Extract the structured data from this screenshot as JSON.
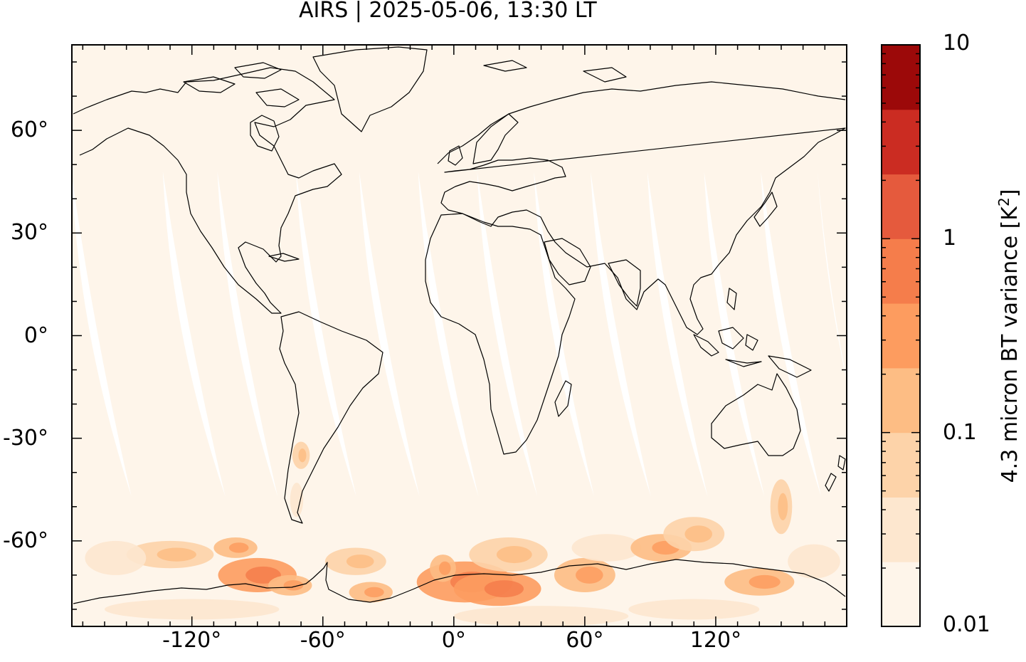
{
  "title": "AIRS | 2025-05-06, 13:30 LT",
  "map": {
    "projection": "equirectangular",
    "lon_range": [
      -175,
      180
    ],
    "lat_range": [
      -85,
      85
    ],
    "background_color": "#fef5ea",
    "land_outline_color": "#000000",
    "x_ticks": [
      {
        "value": -120,
        "label": "-120°"
      },
      {
        "value": -60,
        "label": "-60°"
      },
      {
        "value": 0,
        "label": "0°"
      },
      {
        "value": 60,
        "label": "60°"
      },
      {
        "value": 120,
        "label": "120°"
      }
    ],
    "y_ticks": [
      {
        "value": 60,
        "label": "60°"
      },
      {
        "value": 30,
        "label": "30°"
      },
      {
        "value": 0,
        "label": "0°"
      },
      {
        "value": -30,
        "label": "-30°"
      },
      {
        "value": -60,
        "label": "-60°"
      }
    ],
    "orbit_gaps": [
      {
        "lon_top": -175,
        "lat_top": 48,
        "lon_bottom": -150,
        "lat_bottom": -47
      },
      {
        "lon_top": -133,
        "lat_top": 48,
        "lon_bottom": -107,
        "lat_bottom": -47
      },
      {
        "lon_top": -108,
        "lat_top": 48,
        "lon_bottom": -83,
        "lat_bottom": -47
      },
      {
        "lon_top": -72,
        "lat_top": 48,
        "lon_bottom": -47,
        "lat_bottom": -47
      },
      {
        "lon_top": -43,
        "lat_top": 48,
        "lon_bottom": -18,
        "lat_bottom": -47
      },
      {
        "lon_top": -16,
        "lat_top": 48,
        "lon_bottom": 9,
        "lat_bottom": -47
      },
      {
        "lon_top": 11,
        "lat_top": 48,
        "lon_bottom": 36,
        "lat_bottom": -47
      },
      {
        "lon_top": 37,
        "lat_top": 48,
        "lon_bottom": 62,
        "lat_bottom": -47
      },
      {
        "lon_top": 63,
        "lat_top": 48,
        "lon_bottom": 88,
        "lat_bottom": -47
      },
      {
        "lon_top": 89,
        "lat_top": 48,
        "lon_bottom": 114,
        "lat_bottom": -47
      },
      {
        "lon_top": 115,
        "lat_top": 48,
        "lon_bottom": 140,
        "lat_bottom": -47
      },
      {
        "lon_top": 141,
        "lat_top": 48,
        "lon_bottom": 166,
        "lat_bottom": -47
      },
      {
        "lon_top": 167,
        "lat_top": 48,
        "lon_bottom": 180,
        "lat_bottom": -20
      }
    ],
    "variance_patches": [
      {
        "lon": -90,
        "lat": -70,
        "rx": 18,
        "ry": 5,
        "level": 4
      },
      {
        "lon": -100,
        "lat": -62,
        "rx": 10,
        "ry": 3,
        "level": 3
      },
      {
        "lon": -130,
        "lat": -64,
        "rx": 20,
        "ry": 4,
        "level": 2
      },
      {
        "lon": -155,
        "lat": -65,
        "rx": 14,
        "ry": 5,
        "level": 1
      },
      {
        "lon": -75,
        "lat": -73,
        "rx": 10,
        "ry": 3,
        "level": 3
      },
      {
        "lon": -45,
        "lat": -66,
        "rx": 14,
        "ry": 4,
        "level": 2
      },
      {
        "lon": -38,
        "lat": -75,
        "rx": 10,
        "ry": 3,
        "level": 3
      },
      {
        "lon": -70,
        "lat": -35,
        "rx": 4,
        "ry": 4,
        "level": 2
      },
      {
        "lon": -72,
        "lat": -48,
        "rx": 3,
        "ry": 5,
        "level": 1
      },
      {
        "lon": 5,
        "lat": -72,
        "rx": 22,
        "ry": 6,
        "level": 4
      },
      {
        "lon": 20,
        "lat": -74,
        "rx": 20,
        "ry": 5,
        "level": 4
      },
      {
        "lon": -5,
        "lat": -68,
        "rx": 6,
        "ry": 4,
        "level": 3
      },
      {
        "lon": 25,
        "lat": -64,
        "rx": 18,
        "ry": 5,
        "level": 2
      },
      {
        "lon": 60,
        "lat": -70,
        "rx": 14,
        "ry": 5,
        "level": 3
      },
      {
        "lon": 70,
        "lat": -62,
        "rx": 16,
        "ry": 4,
        "level": 1
      },
      {
        "lon": 95,
        "lat": -62,
        "rx": 14,
        "ry": 4,
        "level": 3
      },
      {
        "lon": 110,
        "lat": -58,
        "rx": 14,
        "ry": 5,
        "level": 2
      },
      {
        "lon": 140,
        "lat": -72,
        "rx": 16,
        "ry": 4,
        "level": 3
      },
      {
        "lon": 150,
        "lat": -50,
        "rx": 5,
        "ry": 8,
        "level": 2
      },
      {
        "lon": 165,
        "lat": -66,
        "rx": 12,
        "ry": 5,
        "level": 1
      },
      {
        "lon": 110,
        "lat": -80,
        "rx": 30,
        "ry": 3,
        "level": 1
      },
      {
        "lon": -120,
        "lat": -80,
        "rx": 40,
        "ry": 3,
        "level": 1
      },
      {
        "lon": 40,
        "lat": -82,
        "rx": 40,
        "ry": 3,
        "level": 1
      }
    ]
  },
  "colorbar": {
    "label": "4.3 micron BT variance [K",
    "label_superscript": "2",
    "label_suffix": "]",
    "scale": "log",
    "range": [
      0.01,
      10
    ],
    "tick_values": [
      10,
      1,
      0.1,
      0.01
    ],
    "tick_labels": [
      "10",
      "1",
      "0.1",
      "0.01"
    ],
    "bands": [
      "#fef5ea",
      "#fde7cf",
      "#fdd3a9",
      "#fdbd84",
      "#fd9c5f",
      "#f57d4b",
      "#e55a3d",
      "#cb2c22",
      "#9c0909"
    ]
  }
}
